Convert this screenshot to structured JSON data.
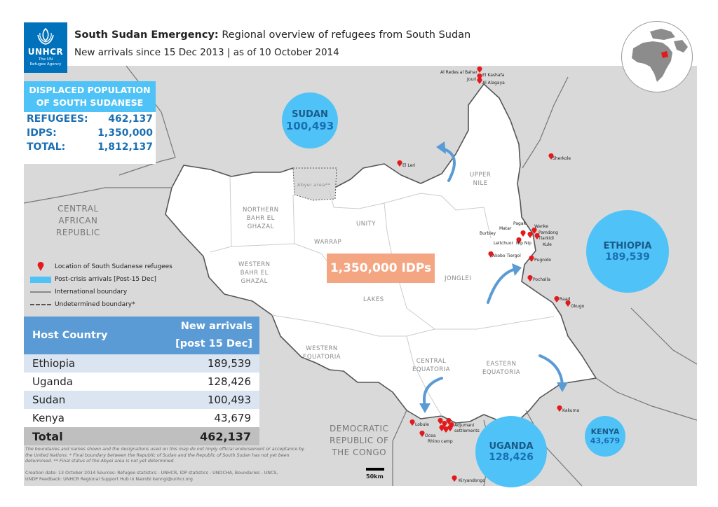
{
  "header": {
    "title_bold": "South Sudan Emergency:",
    "title_rest": " Regional overview of refugees from South Sudan",
    "subtitle": "New arrivals since 15 Dec 2013 | as of 10 October 2014"
  },
  "logo": {
    "name": "UNHCR",
    "sub1": "The UN",
    "sub2": "Refugee Agency",
    "icon": "unhcr-emblem-icon"
  },
  "displaced": {
    "title_line1": "DISPLACED POPULATION",
    "title_line2": "OF SOUTH SUDANESE",
    "rows": [
      {
        "label": "REFUGEES:",
        "value": "462,137"
      },
      {
        "label": "IDPS:",
        "value": "1,350,000"
      },
      {
        "label": "TOTAL:",
        "value": "1,812,137"
      }
    ]
  },
  "bubbles": {
    "sudan": {
      "name": "SUDAN",
      "value": "100,493"
    },
    "ethiopia": {
      "name": "ETHIOPIA",
      "value": "189,539"
    },
    "uganda": {
      "name": "UGANDA",
      "value": "128,426"
    },
    "kenya": {
      "name": "KENYA",
      "value": "43,679"
    }
  },
  "idp_label": "1,350,000 IDPs",
  "countries": {
    "car": [
      "CENTRAL",
      "AFRICAN",
      "REPUBLIC"
    ],
    "drc": [
      "DEMOCRATIC",
      "REPUBLIC OF",
      "THE CONGO"
    ]
  },
  "states": {
    "northern_bahr": [
      "NORTHERN",
      "BAHR EL",
      "GHAZAL"
    ],
    "western_bahr": [
      "WESTERN",
      "BAHR EL",
      "GHAZAL"
    ],
    "warrap": "WARRAP",
    "unity": "UNITY",
    "upper_nile": [
      "UPPER",
      "NILE"
    ],
    "jonglei": "JONGLEI",
    "lakes": "LAKES",
    "western_eq": [
      "WESTERN",
      "EQUATORIA"
    ],
    "central_eq": [
      "CENTRAL",
      "EQUATORIA"
    ],
    "eastern_eq": [
      "EASTERN",
      "EQUATORIA"
    ],
    "abyei": "Abyei area**"
  },
  "sites": {
    "alredis": "Al Redes al Bahar",
    "jouri": "Jouri",
    "elkashafa": "El Kashafa",
    "alalagaya": "Al Alagaya",
    "ellieri": "El Leri",
    "sherkole": "Sherkole",
    "pagak": "Pagak",
    "matar": "Matar",
    "burbiey": "Burbiey",
    "wanke": "Wanke",
    "pamdong": "Pamdong",
    "tiarkidi": "Tiarkidi",
    "kule": "Kule",
    "leitchuor": "Leitchuor",
    "nipnip": "Nip Nip",
    "akobo": "Akobo Tiergol",
    "pugnido": "Pugnido",
    "pochalla": "Pochalla",
    "raad": "Raad",
    "okugo": "Okugo",
    "kakuma": "Kakuma",
    "lobule": "Lobule",
    "adjumani": "Adjumani",
    "settlements": "settlements",
    "ocea": "Ocea",
    "rhino": "Rhino camp",
    "kiryandongo": "Kiryandongo"
  },
  "legend": {
    "location": "Location of South Sudanese refugees",
    "arrivals": "Post-crisis arrivals [Post-15 Dec]",
    "intl": "International boundary",
    "undetermined": "Undetermined boundary*"
  },
  "table": {
    "head_country": "Host Country",
    "head_arrivals1": "New arrivals",
    "head_arrivals2": "[post 15 Dec]",
    "rows": [
      {
        "country": "Ethiopia",
        "value": "189,539"
      },
      {
        "country": "Uganda",
        "value": "128,426"
      },
      {
        "country": "Sudan",
        "value": "100,493"
      },
      {
        "country": "Kenya",
        "value": "43,679"
      }
    ],
    "total_label": "Total",
    "total_value": "462,137"
  },
  "footnote": "The boundaries and names shown and the designations used on this map do not imply official endorsement or acceptance by the United Nations. * Final boundary between the Republic of Sudan and the Republic of South Sudan has not yet been determined. ** Final status of the Abyei area is not yet determined.",
  "credits_line1": "Creation date: 13 October 2014   Sources: Refugee statistics - UNHCR, IDP statistics - UNOCHA, Boundaries - UNCS,",
  "credits_line2": "UNDP  Feedback: UNHCR Regional Support Hub in Nairobi kenngi@unhcr.org",
  "scale": "50km",
  "colors": {
    "unhcr_blue": "#0072bc",
    "bubble": "#4fc3f7",
    "idp": "#f4a582",
    "table_head": "#5b9bd5",
    "marker": "#e31a1c"
  }
}
